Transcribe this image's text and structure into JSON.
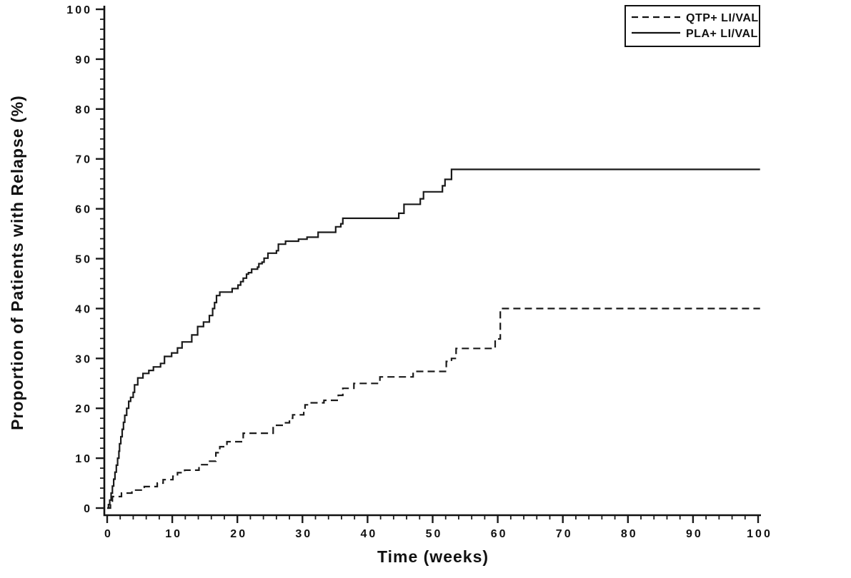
{
  "chart_data": {
    "type": "line",
    "subtype": "step",
    "title": "",
    "xlabel": "Time (weeks)",
    "ylabel": "Proportion of Patients with Relapse (%)",
    "xlim": [
      0,
      100
    ],
    "ylim": [
      0,
      100
    ],
    "grid": false,
    "line_color": "#1a1a1a",
    "background_color": "#ffffff",
    "x_major_ticks": [
      0,
      10,
      20,
      30,
      40,
      50,
      60,
      70,
      80,
      90,
      100
    ],
    "x_tick_labels": [
      "0",
      "10",
      "20",
      "30",
      "40",
      "50",
      "60",
      "70",
      "80",
      "90",
      "100"
    ],
    "x_minor_interval": 2,
    "y_major_ticks": [
      0,
      10,
      20,
      30,
      40,
      50,
      60,
      70,
      80,
      90,
      100
    ],
    "y_tick_labels": [
      "0",
      "10",
      "20",
      "30",
      "40",
      "50",
      "60",
      "70",
      "80",
      "90",
      "100"
    ],
    "y_minor_interval": 2,
    "curve_end_week": 100.3,
    "legend": {
      "position": "top-right",
      "entries": [
        {
          "label": "QTP+ LI/VAL",
          "line_style": "dashed"
        },
        {
          "label": "PLA+ LI/VAL",
          "line_style": "solid"
        }
      ]
    },
    "series": [
      {
        "id": "qtp-li-val",
        "name": "QTP+ LI/VAL",
        "style": "dashed",
        "color": "#1a1a1a",
        "points": [
          [
            0,
            0
          ],
          [
            0.5,
            0.8
          ],
          [
            0.8,
            2.3
          ],
          [
            2.2,
            3.0
          ],
          [
            3.8,
            3.6
          ],
          [
            5.7,
            4.3
          ],
          [
            7.7,
            5.0
          ],
          [
            8.6,
            5.7
          ],
          [
            10.1,
            6.4
          ],
          [
            10.8,
            7.1
          ],
          [
            11.9,
            7.6
          ],
          [
            14.1,
            8.7
          ],
          [
            15.6,
            9.4
          ],
          [
            16.7,
            11.1
          ],
          [
            17.3,
            12.3
          ],
          [
            18.4,
            13.3
          ],
          [
            20.9,
            15.0
          ],
          [
            25.5,
            16.6
          ],
          [
            27.1,
            17.1
          ],
          [
            28.0,
            18.0
          ],
          [
            28.5,
            18.7
          ],
          [
            30.2,
            19.3
          ],
          [
            30.4,
            20.7
          ],
          [
            31.1,
            21.1
          ],
          [
            33.3,
            21.6
          ],
          [
            35.5,
            22.6
          ],
          [
            36.2,
            24.0
          ],
          [
            37.9,
            25.0
          ],
          [
            41.9,
            26.3
          ],
          [
            47.0,
            27.4
          ],
          [
            52.1,
            29.4
          ],
          [
            52.9,
            30.0
          ],
          [
            53.6,
            32.0
          ],
          [
            59.6,
            33.9
          ],
          [
            60.4,
            40.0
          ],
          [
            100.3,
            40.0
          ]
        ]
      },
      {
        "id": "pla-li-val",
        "name": "PLA+ LI/VAL",
        "style": "solid",
        "color": "#1a1a1a",
        "points": [
          [
            0,
            0
          ],
          [
            0.2,
            0.7
          ],
          [
            0.4,
            1.6
          ],
          [
            0.6,
            3.0
          ],
          [
            0.8,
            4.4
          ],
          [
            1.0,
            5.8
          ],
          [
            1.2,
            7.2
          ],
          [
            1.4,
            8.6
          ],
          [
            1.6,
            10.0
          ],
          [
            1.8,
            11.4
          ],
          [
            1.9,
            12.9
          ],
          [
            2.1,
            14.3
          ],
          [
            2.3,
            15.8
          ],
          [
            2.5,
            17.2
          ],
          [
            2.7,
            18.6
          ],
          [
            3.0,
            20.0
          ],
          [
            3.3,
            21.4
          ],
          [
            3.6,
            22.2
          ],
          [
            4.0,
            23.2
          ],
          [
            4.2,
            24.7
          ],
          [
            4.7,
            26.1
          ],
          [
            5.5,
            27.0
          ],
          [
            6.4,
            27.6
          ],
          [
            7.1,
            28.3
          ],
          [
            8.2,
            29.0
          ],
          [
            8.8,
            30.4
          ],
          [
            9.9,
            31.1
          ],
          [
            10.8,
            32.1
          ],
          [
            11.5,
            33.3
          ],
          [
            13.0,
            34.7
          ],
          [
            13.9,
            36.4
          ],
          [
            14.8,
            37.3
          ],
          [
            15.7,
            38.6
          ],
          [
            16.2,
            40.0
          ],
          [
            16.5,
            41.2
          ],
          [
            16.8,
            42.6
          ],
          [
            17.3,
            43.3
          ],
          [
            19.2,
            44.0
          ],
          [
            20.1,
            44.7
          ],
          [
            20.5,
            45.4
          ],
          [
            20.9,
            46.1
          ],
          [
            21.4,
            46.9
          ],
          [
            21.7,
            47.2
          ],
          [
            22.2,
            47.9
          ],
          [
            23.1,
            48.3
          ],
          [
            23.3,
            49.0
          ],
          [
            23.8,
            49.3
          ],
          [
            24.1,
            50.1
          ],
          [
            24.7,
            51.1
          ],
          [
            26.0,
            51.6
          ],
          [
            26.3,
            52.9
          ],
          [
            27.4,
            53.5
          ],
          [
            29.4,
            53.9
          ],
          [
            30.7,
            54.3
          ],
          [
            32.4,
            55.3
          ],
          [
            35.1,
            56.4
          ],
          [
            35.9,
            57.0
          ],
          [
            36.2,
            58.1
          ],
          [
            44.8,
            59.1
          ],
          [
            45.6,
            60.9
          ],
          [
            48.1,
            62.0
          ],
          [
            48.6,
            63.4
          ],
          [
            51.5,
            64.6
          ],
          [
            51.9,
            65.9
          ],
          [
            52.9,
            67.9
          ],
          [
            100.3,
            67.9
          ]
        ]
      }
    ]
  }
}
